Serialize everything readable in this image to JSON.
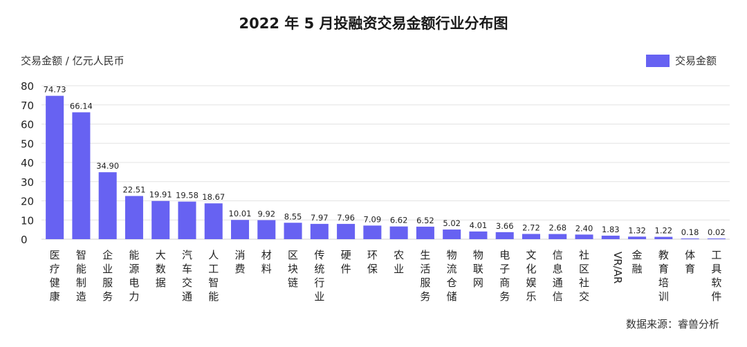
{
  "chart_data": {
    "type": "bar",
    "title": "2022 年 5 月投融资交易金额行业分布图",
    "ylabel": "交易金额 / 亿元人民币",
    "xlabel": "",
    "source": "数据来源：睿兽分析",
    "ylim": [
      0,
      80
    ],
    "yticks": [
      "0",
      "10",
      "20",
      "30",
      "40",
      "50",
      "60",
      "70",
      "80"
    ],
    "grid": true,
    "legend_position": "top-right",
    "bar_color": "#6762f2",
    "series": [
      {
        "name": "交易金额",
        "values": [
          74.73,
          66.14,
          34.9,
          22.51,
          19.91,
          19.58,
          18.67,
          10.01,
          9.92,
          8.55,
          7.97,
          7.96,
          7.09,
          6.62,
          6.52,
          5.02,
          4.01,
          3.66,
          2.72,
          2.68,
          2.4,
          1.83,
          1.32,
          1.22,
          0.18,
          0.02
        ],
        "value_labels": [
          "74.73",
          "66.14",
          "34.90",
          "22.51",
          "19.91",
          "19.58",
          "18.67",
          "10.01",
          "9.92",
          "8.55",
          "7.97",
          "7.96",
          "7.09",
          "6.62",
          "6.52",
          "5.02",
          "4.01",
          "3.66",
          "2.72",
          "2.68",
          "2.40",
          "1.83",
          "1.32",
          "1.22",
          "0.18",
          "0.02"
        ]
      }
    ],
    "categories": [
      "医疗健康",
      "智能制造",
      "企业服务",
      "能源电力",
      "大数据",
      "汽车交通",
      "人工智能",
      "消费",
      "材料",
      "区块链",
      "传统行业",
      "硬件",
      "环保",
      "农业",
      "生活服务",
      "物流仓储",
      "物联网",
      "电子商务",
      "文化娱乐",
      "信息通信",
      "社区社交",
      "VR/AR",
      "金融",
      "教育培训",
      "体育",
      "工具软件"
    ]
  }
}
